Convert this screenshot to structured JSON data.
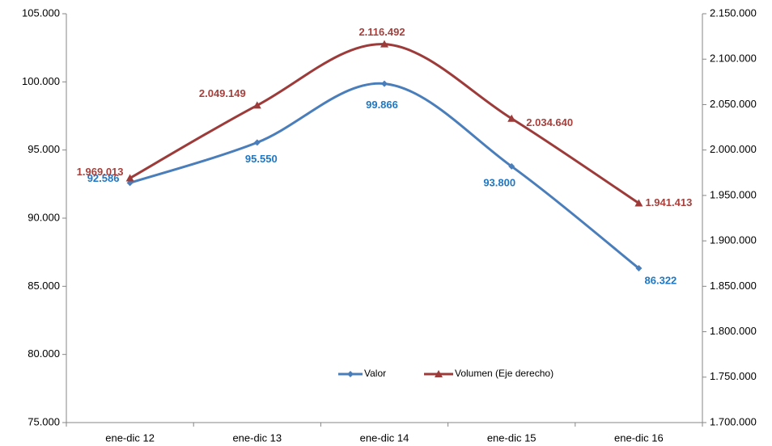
{
  "chart_data": {
    "type": "line",
    "categories": [
      "ene-dic 12",
      "ene-dic 13",
      "ene-dic 14",
      "ene-dic 15",
      "ene-dic 16"
    ],
    "series": [
      {
        "name": "Valor",
        "color": "#4a7ebb",
        "label_color": "#1f77c4",
        "marker": "diamond",
        "values": [
          92586,
          95550,
          99866,
          93800,
          86322
        ],
        "value_labels": [
          "92.586",
          "95.550",
          "99.866",
          "93.800",
          "86.322"
        ]
      },
      {
        "name": "Volumen (Eje derecho)",
        "color": "#9c3b39",
        "label_color": "#a5403c",
        "marker": "triangle",
        "axis": "y2",
        "values": [
          1969013,
          2049149,
          2116492,
          2034640,
          1941413
        ],
        "value_labels": [
          "1.969.013",
          "2.049.149",
          "2.116.492",
          "2.034.640",
          "1.941.413"
        ]
      }
    ],
    "ylim": [
      75000,
      105000
    ],
    "yticks": [
      {
        "value": 75000,
        "label": "75.000"
      },
      {
        "value": 80000,
        "label": "80.000"
      },
      {
        "value": 85000,
        "label": "85.000"
      },
      {
        "value": 90000,
        "label": "90.000"
      },
      {
        "value": 95000,
        "label": "95.000"
      },
      {
        "value": 100000,
        "label": "100.000"
      },
      {
        "value": 105000,
        "label": "105.000"
      }
    ],
    "y2lim": [
      1700000,
      2150000
    ],
    "y2ticks": [
      {
        "value": 1700000,
        "label": "1.700.000"
      },
      {
        "value": 1750000,
        "label": "1.750.000"
      },
      {
        "value": 1800000,
        "label": "1.800.000"
      },
      {
        "value": 1850000,
        "label": "1.850.000"
      },
      {
        "value": 1900000,
        "label": "1.900.000"
      },
      {
        "value": 1950000,
        "label": "1.950.000"
      },
      {
        "value": 2000000,
        "label": "2.000.000"
      },
      {
        "value": 2050000,
        "label": "2.050.000"
      },
      {
        "value": 2100000,
        "label": "2.100.000"
      },
      {
        "value": 2150000,
        "label": "2.150.000"
      }
    ],
    "grid": false,
    "smooth": true,
    "legend": "bottom-center"
  }
}
